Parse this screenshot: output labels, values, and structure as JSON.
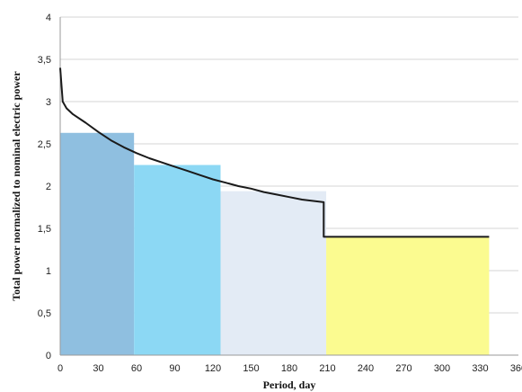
{
  "chart_data": {
    "type": "line",
    "xlabel": "Period, day",
    "ylabel": "Total power normalized to nominal electric power",
    "xlim": [
      0,
      360
    ],
    "ylim": [
      0,
      4
    ],
    "x_ticks": [
      0,
      30,
      60,
      90,
      120,
      150,
      180,
      210,
      240,
      270,
      300,
      330,
      360
    ],
    "y_ticks": [
      "0",
      "0,5",
      "1",
      "1,5",
      "2",
      "2,5",
      "3",
      "3,5",
      "4"
    ],
    "y_tick_values": [
      0,
      0.5,
      1,
      1.5,
      2,
      2.5,
      3,
      3.5,
      4
    ],
    "grid": "horizontal",
    "bars": [
      {
        "x_start": 0,
        "x_end": 58,
        "value": 2.63,
        "color": "#8fbfe0"
      },
      {
        "x_start": 58,
        "x_end": 126,
        "value": 2.25,
        "color": "#8cd8f4"
      },
      {
        "x_start": 126,
        "x_end": 209,
        "value": 1.94,
        "color": "#e3ebf5"
      },
      {
        "x_start": 209,
        "x_end": 337,
        "value": 1.4,
        "color": "#fbfb90"
      }
    ],
    "series": [
      {
        "color": "#1a1a1a",
        "points": [
          [
            0,
            3.4
          ],
          [
            1,
            3.2
          ],
          [
            2,
            3.0
          ],
          [
            5,
            2.92
          ],
          [
            10,
            2.85
          ],
          [
            20,
            2.75
          ],
          [
            30,
            2.64
          ],
          [
            40,
            2.54
          ],
          [
            50,
            2.46
          ],
          [
            60,
            2.39
          ],
          [
            70,
            2.33
          ],
          [
            80,
            2.28
          ],
          [
            90,
            2.23
          ],
          [
            100,
            2.18
          ],
          [
            110,
            2.13
          ],
          [
            120,
            2.08
          ],
          [
            130,
            2.04
          ],
          [
            140,
            2.0
          ],
          [
            150,
            1.97
          ],
          [
            160,
            1.93
          ],
          [
            170,
            1.9
          ],
          [
            180,
            1.87
          ],
          [
            190,
            1.84
          ],
          [
            207,
            1.81
          ],
          [
            207,
            1.4
          ],
          [
            337,
            1.4
          ]
        ]
      }
    ]
  }
}
